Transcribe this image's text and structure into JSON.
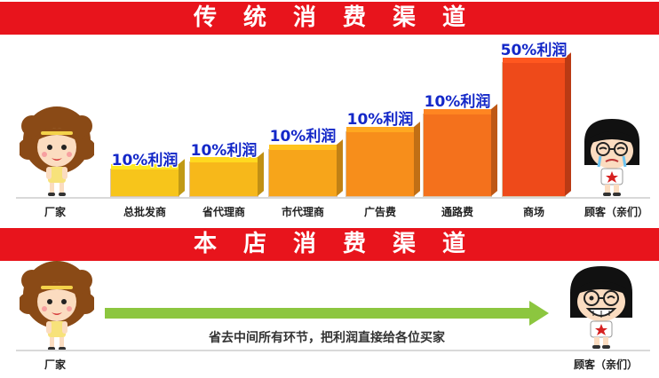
{
  "traditional": {
    "title": "传统消费渠道",
    "maker_label": "厂家",
    "customer_label": "顾客（亲们）",
    "colors": {
      "banner": "#e8141c",
      "profit_text": "#1428c8"
    },
    "channels": [
      {
        "label": "总批发商",
        "profit": "10%利润",
        "color": "#f7c51b"
      },
      {
        "label": "省代理商",
        "profit": "10%利润",
        "color": "#f7b81a"
      },
      {
        "label": "市代理商",
        "profit": "10%利润",
        "color": "#f7a51a"
      },
      {
        "label": "广告费",
        "profit": "10%利润",
        "color": "#f78e1b"
      },
      {
        "label": "通路费",
        "profit": "10%利润",
        "color": "#f4711c"
      },
      {
        "label": "商场",
        "profit": "50%利润",
        "color": "#ee4a1a"
      }
    ]
  },
  "our_store": {
    "title": "本店消费渠道",
    "maker_label": "厂家",
    "customer_label": "顾客（亲们）",
    "arrow_caption": "省去中间所有环节，把利润直接给各位买家",
    "colors": {
      "arrow": "#8cc63f"
    }
  }
}
